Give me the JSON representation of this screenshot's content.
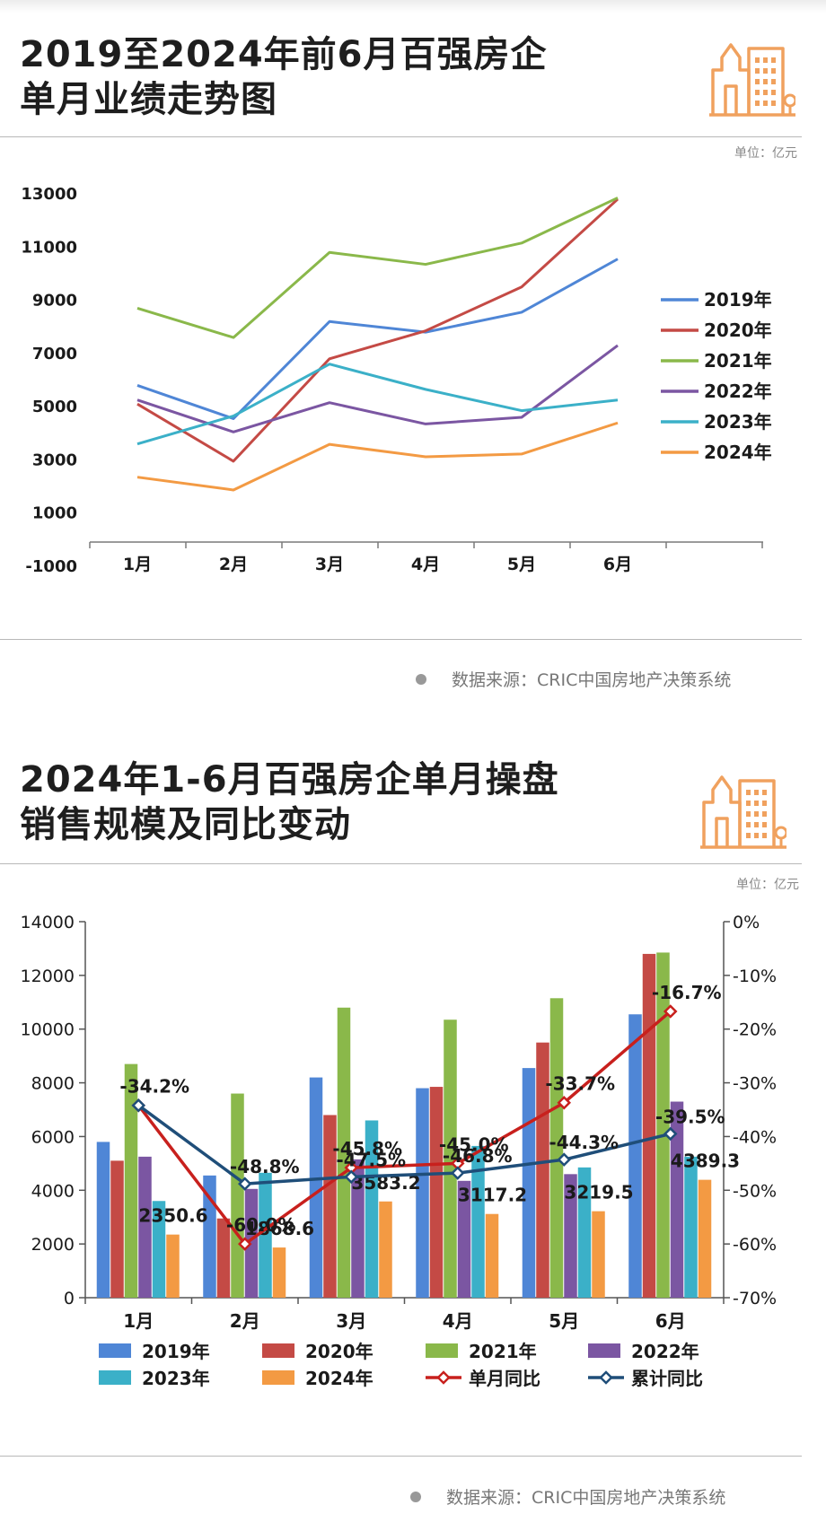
{
  "chart1": {
    "title_line1": "2019至2024年前6月百强房企",
    "title_line2": "单月业绩走势图",
    "unit": "单位：亿元",
    "source": "数据来源：CRIC中国房地产决策系统"
  },
  "chart2": {
    "title_line1": "2024年1-6月百强房企单月操盘",
    "title_line2": "销售规模及同比变动",
    "unit": "单位：亿元",
    "source": "数据来源：CRIC中国房地产决策系统"
  },
  "icon": "building-icon",
  "colors": {
    "2019年": "#4f86d6",
    "2020年": "#c44a45",
    "2021年": "#8ab84a",
    "2022年": "#7b56a2",
    "2023年": "#3bb0c8",
    "2024年": "#f39a43",
    "单月同比": "#c8201d",
    "累计同比": "#1f4e79",
    "icon": "#f0a15e"
  },
  "chart_data": [
    {
      "type": "line",
      "categories": [
        "1月",
        "2月",
        "3月",
        "4月",
        "5月",
        "6月"
      ],
      "ylim": [
        -1000,
        13000
      ],
      "yticks": [
        "13000",
        "11000",
        "9000",
        "7000",
        "5000",
        "3000",
        "1000",
        "-1000"
      ],
      "legend_position": "right",
      "series": [
        {
          "name": "2019年",
          "values": [
            5800,
            4550,
            8200,
            7800,
            8550,
            10550
          ]
        },
        {
          "name": "2020年",
          "values": [
            5100,
            2950,
            6800,
            7850,
            9500,
            12800
          ]
        },
        {
          "name": "2021年",
          "values": [
            8700,
            7600,
            10800,
            10350,
            11150,
            12850
          ]
        },
        {
          "name": "2022年",
          "values": [
            5250,
            4050,
            5150,
            4350,
            4600,
            7300
          ]
        },
        {
          "name": "2023年",
          "values": [
            3600,
            4650,
            6600,
            5650,
            4850,
            5250
          ]
        },
        {
          "name": "2024年",
          "values": [
            2350.6,
            1868.6,
            3583.2,
            3117.2,
            3219.5,
            4389.3
          ]
        }
      ]
    },
    {
      "type": "bar",
      "categories": [
        "1月",
        "2月",
        "3月",
        "4月",
        "5月",
        "6月"
      ],
      "ylim": [
        0,
        14000
      ],
      "yticks": [
        "14000",
        "12000",
        "10000",
        "8000",
        "6000",
        "4000",
        "2000",
        "0"
      ],
      "y2lim": [
        -70,
        0
      ],
      "y2ticks": [
        "0%",
        "-10%",
        "-20%",
        "-30%",
        "-40%",
        "-50%",
        "-60%",
        "-70%"
      ],
      "legend_position": "bottom",
      "series": [
        {
          "name": "2019年",
          "values": [
            5800,
            4550,
            8200,
            7800,
            8550,
            10550
          ]
        },
        {
          "name": "2020年",
          "values": [
            5100,
            2950,
            6800,
            7850,
            9500,
            12800
          ]
        },
        {
          "name": "2021年",
          "values": [
            8700,
            7600,
            10800,
            10350,
            11150,
            12850
          ]
        },
        {
          "name": "2022年",
          "values": [
            5250,
            4050,
            5150,
            4350,
            4600,
            7300
          ]
        },
        {
          "name": "2023年",
          "values": [
            3600,
            4650,
            6600,
            5650,
            4850,
            5250
          ]
        },
        {
          "name": "2024年",
          "values": [
            2350.6,
            1868.6,
            3583.2,
            3117.2,
            3219.5,
            4389.3
          ],
          "labels": [
            "2350.6",
            "1868.6",
            "3583.2",
            "3117.2",
            "3219.5",
            "4389.3"
          ]
        }
      ],
      "line_series": [
        {
          "name": "单月同比",
          "values": [
            -34.2,
            -60.0,
            -45.8,
            -45.0,
            -33.7,
            -16.7
          ],
          "labels": [
            "-34.2%",
            "-60.0%",
            "-45.8%",
            "-45.0%",
            "-33.7%",
            "-16.7%"
          ]
        },
        {
          "name": "累计同比",
          "values": [
            -34.2,
            -48.8,
            -47.5,
            -46.8,
            -44.3,
            -39.5
          ],
          "labels": [
            "",
            "-48.8%",
            "-47.5%",
            "-46.8%",
            "-44.3%",
            "-39.5%"
          ]
        }
      ]
    }
  ]
}
